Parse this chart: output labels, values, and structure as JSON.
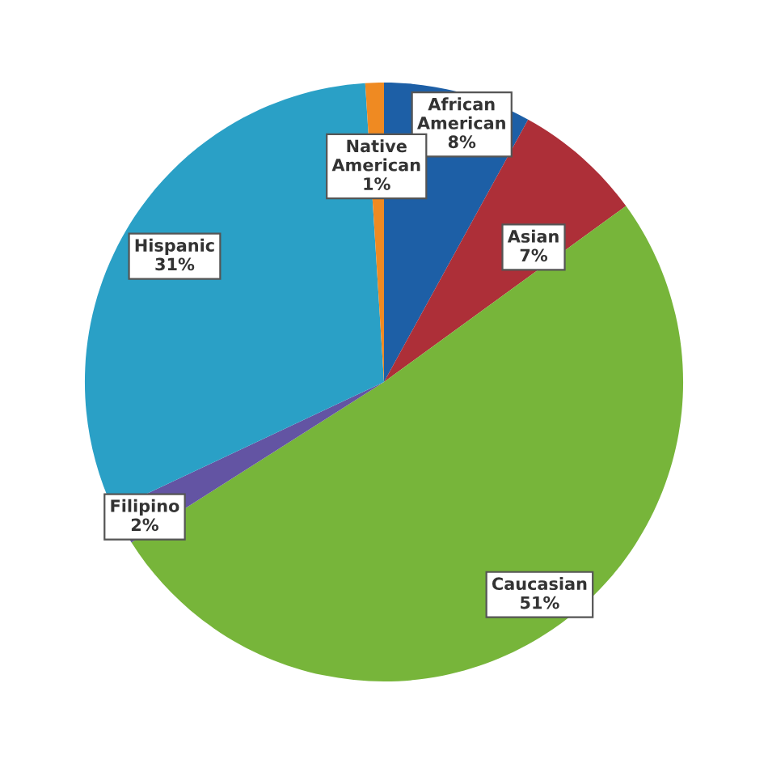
{
  "chart_data": {
    "type": "pie",
    "categories": [
      "African American",
      "Asian",
      "Caucasian",
      "Filipino",
      "Hispanic",
      "Native American"
    ],
    "values": [
      8,
      7,
      51,
      2,
      31,
      1
    ],
    "colors": [
      "#1d5fa6",
      "#ad2f38",
      "#77b53a",
      "#6354a3",
      "#2aa0c6",
      "#ef8a22"
    ],
    "value_labels": [
      "8%",
      "7%",
      "51%",
      "2%",
      "31%",
      "1%"
    ]
  }
}
